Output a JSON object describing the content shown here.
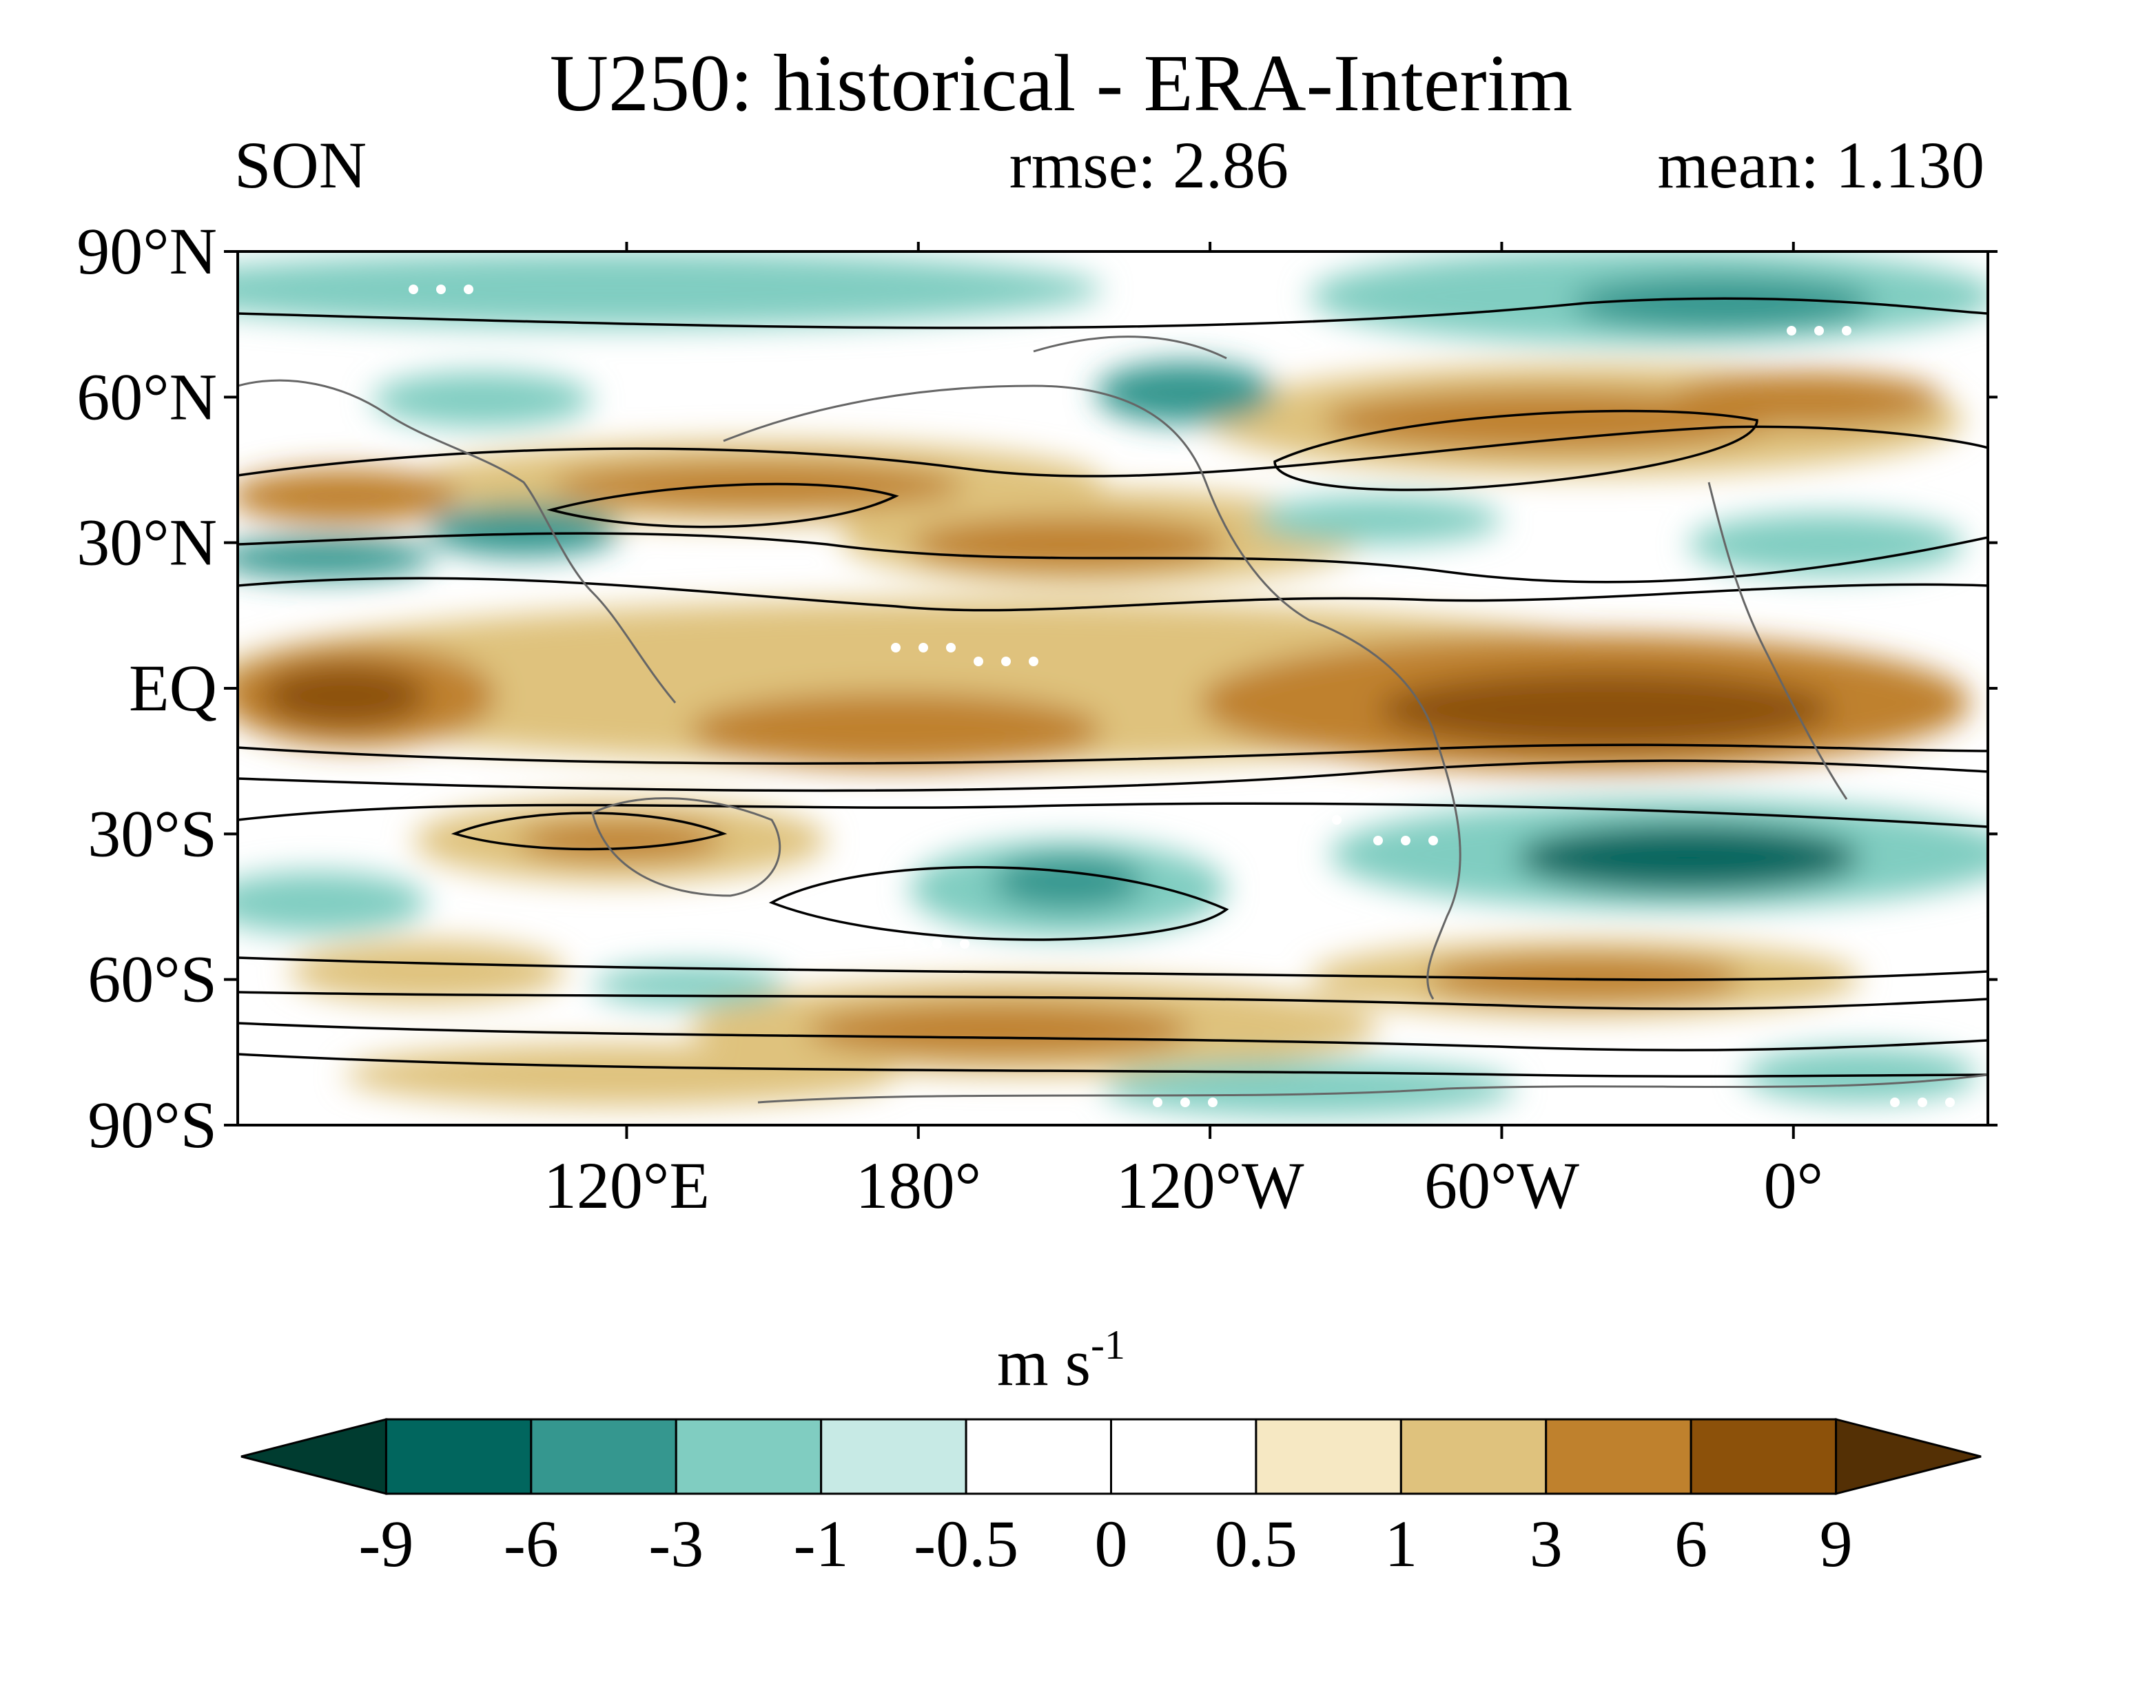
{
  "title": "U250: historical - ERA-Interim",
  "season": "SON",
  "rmse_label": "rmse: 2.86",
  "mean_label": "mean: 1.130",
  "map": {
    "lat_ticks": [
      {
        "lat": 90,
        "label": "90°N"
      },
      {
        "lat": 60,
        "label": "60°N"
      },
      {
        "lat": 30,
        "label": "30°N"
      },
      {
        "lat": 0,
        "label": "EQ"
      },
      {
        "lat": -30,
        "label": "30°S"
      },
      {
        "lat": -60,
        "label": "60°S"
      },
      {
        "lat": -90,
        "label": "90°S"
      }
    ],
    "lon_ticks": [
      {
        "lon": 120,
        "label": "120°E"
      },
      {
        "lon": 180,
        "label": "180°"
      },
      {
        "lon": 240,
        "label": "120°W"
      },
      {
        "lon": 300,
        "label": "60°W"
      },
      {
        "lon": 360,
        "label": "0°"
      }
    ],
    "lon_range": [
      40,
      400
    ],
    "lat_range": [
      -90,
      90
    ]
  },
  "colorbar": {
    "units_base": "m s",
    "units_exp": "-1",
    "labels": [
      "-9",
      "-6",
      "-3",
      "-1",
      "-0.5",
      "0",
      "0.5",
      "1",
      "3",
      "6",
      "9"
    ],
    "colors": [
      "#003c30",
      "#01665e",
      "#35978f",
      "#80cdc1",
      "#c7eae5",
      "#ffffff",
      "#ffffff",
      "#f6e8c3",
      "#dfc27d",
      "#bf812d",
      "#8c510a",
      "#543005"
    ]
  }
}
